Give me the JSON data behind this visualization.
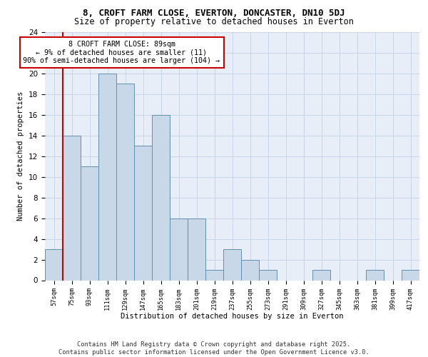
{
  "title1": "8, CROFT FARM CLOSE, EVERTON, DONCASTER, DN10 5DJ",
  "title2": "Size of property relative to detached houses in Everton",
  "xlabel": "Distribution of detached houses by size in Everton",
  "ylabel": "Number of detached properties",
  "categories": [
    "57sqm",
    "75sqm",
    "93sqm",
    "111sqm",
    "129sqm",
    "147sqm",
    "165sqm",
    "183sqm",
    "201sqm",
    "219sqm",
    "237sqm",
    "255sqm",
    "273sqm",
    "291sqm",
    "309sqm",
    "327sqm",
    "345sqm",
    "363sqm",
    "381sqm",
    "399sqm",
    "417sqm"
  ],
  "values": [
    3,
    14,
    11,
    20,
    19,
    13,
    16,
    6,
    6,
    1,
    3,
    2,
    1,
    0,
    0,
    1,
    0,
    0,
    1,
    0,
    1
  ],
  "bar_color": "#c8d8e8",
  "bar_edge_color": "#6090b0",
  "annotation_text": "8 CROFT FARM CLOSE: 89sqm\n← 9% of detached houses are smaller (11)\n90% of semi-detached houses are larger (104) →",
  "annotation_box_color": "#ffffff",
  "annotation_box_edge": "#cc0000",
  "ylim": [
    0,
    24
  ],
  "yticks": [
    0,
    2,
    4,
    6,
    8,
    10,
    12,
    14,
    16,
    18,
    20,
    22,
    24
  ],
  "red_line_color": "#cc0000",
  "grid_color": "#c8d4e8",
  "bg_color": "#e8eef8",
  "footer": "Contains HM Land Registry data © Crown copyright and database right 2025.\nContains public sector information licensed under the Open Government Licence v3.0.",
  "title1_fontsize": 9,
  "title2_fontsize": 8.5,
  "footer_fontsize": 6.2
}
